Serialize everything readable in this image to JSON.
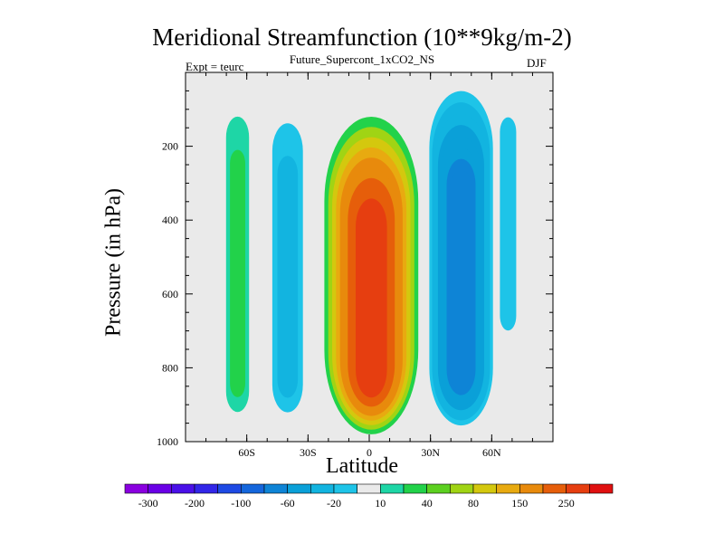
{
  "chart_data": {
    "type": "heatmap",
    "title": "Meridional Streamfunction (10**9kg/m-2)",
    "subtitle": "Future_Supercont_1xCO2_NS",
    "left_note": "Expt = teurc",
    "right_note": "DJF",
    "xlabel": "Latitude",
    "ylabel": "Pressure (in hPa)",
    "xlim": [
      -90,
      90
    ],
    "ylim": [
      0,
      1000
    ],
    "y_inverted": true,
    "x_ticks": [
      {
        "value": -60,
        "label": "60S"
      },
      {
        "value": -30,
        "label": "30S"
      },
      {
        "value": 0,
        "label": "0"
      },
      {
        "value": 30,
        "label": "30N"
      },
      {
        "value": 60,
        "label": "60N"
      }
    ],
    "y_ticks": [
      {
        "value": 200,
        "label": "200"
      },
      {
        "value": 400,
        "label": "400"
      },
      {
        "value": 600,
        "label": "600"
      },
      {
        "value": 800,
        "label": "800"
      },
      {
        "value": 1000,
        "label": "1000"
      }
    ],
    "colorbar": {
      "levels": [
        -300,
        -250,
        -200,
        -150,
        -100,
        -80,
        -60,
        -40,
        -20,
        -10,
        10,
        20,
        40,
        60,
        80,
        100,
        150,
        200,
        250,
        300
      ],
      "labels": [
        "-300",
        "-200",
        "-100",
        "-60",
        "-20",
        "10",
        "40",
        "80",
        "150",
        "250"
      ],
      "colors": [
        "#8a00e0",
        "#6a00e6",
        "#4a10e8",
        "#3226e8",
        "#1e4ae4",
        "#1466dc",
        "#0e84d6",
        "#0aa0d8",
        "#12b4e0",
        "#1ec4e8",
        "#eaeaea",
        "#1ed6a6",
        "#22d24a",
        "#5cd020",
        "#a0d414",
        "#d4c80e",
        "#e8aa10",
        "#e88a0c",
        "#e65e0a",
        "#e63e10",
        "#e01010"
      ]
    },
    "background_color": "#eaeaea",
    "bands": [
      {
        "name": "southern-polar-positive-cell",
        "lat_range": [
          -72,
          -57
        ],
        "pressure_range": [
          30,
          960
        ],
        "peak_value": 30,
        "sign": "positive"
      },
      {
        "name": "southern-midlatitude-negative-cell",
        "lat_range": [
          -50,
          -30
        ],
        "pressure_range": [
          50,
          960
        ],
        "peak_value": -30,
        "sign": "negative"
      },
      {
        "name": "hadley-positive-cell",
        "lat_range": [
          -22,
          24
        ],
        "pressure_range": [
          120,
          980
        ],
        "peak_value": 300,
        "sign": "positive"
      },
      {
        "name": "northern-midlatitude-negative-cell",
        "lat_range": [
          28,
          62
        ],
        "pressure_range": [
          20,
          970
        ],
        "peak_value": -80,
        "sign": "negative"
      },
      {
        "name": "northern-polar-negative-cell",
        "lat_range": [
          62,
          74
        ],
        "pressure_range": [
          30,
          740
        ],
        "peak_value": -20,
        "sign": "negative"
      }
    ]
  }
}
